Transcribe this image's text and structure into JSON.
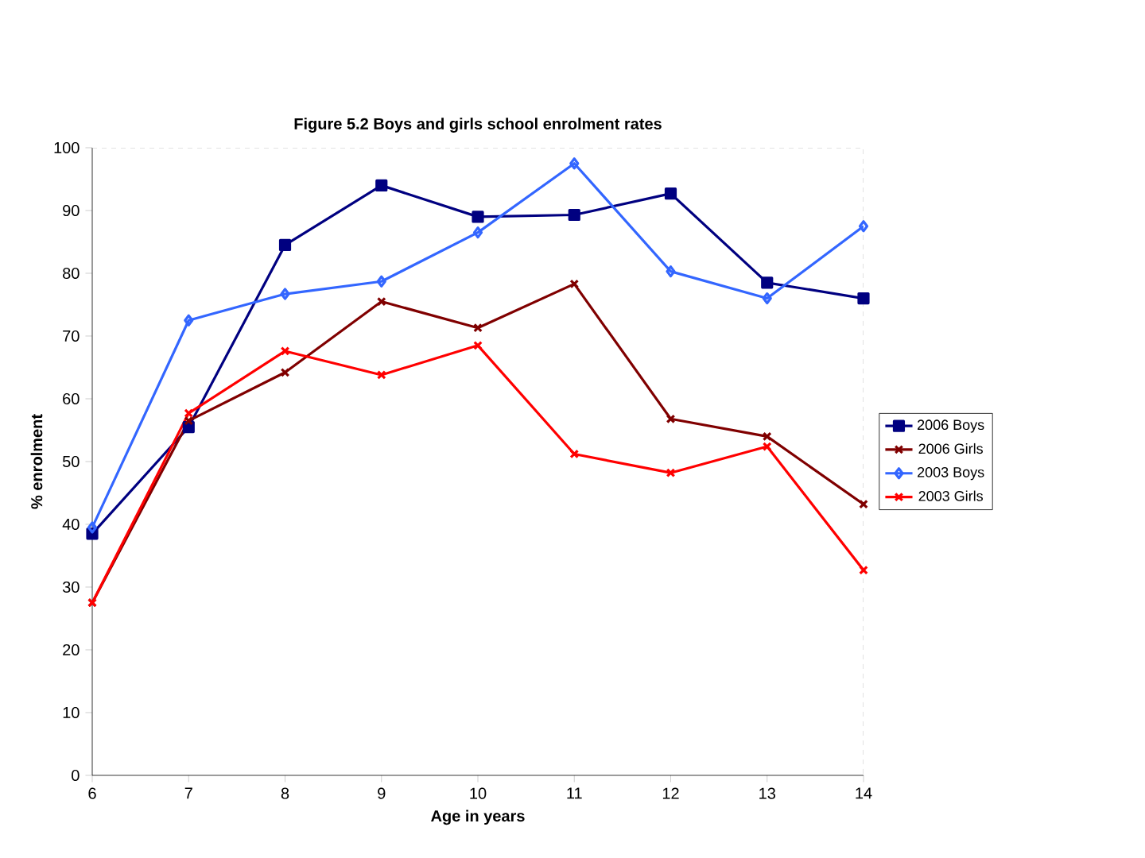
{
  "chart_data": {
    "type": "line",
    "title": "Figure 5.2 Boys and girls school enrolment rates",
    "xlabel": "Age in years",
    "ylabel": "% enrolment",
    "x": [
      6,
      7,
      8,
      9,
      10,
      11,
      12,
      13,
      14
    ],
    "series": [
      {
        "name": "2006 Boys",
        "color": "#000080",
        "marker": "square",
        "values": [
          38.5,
          55.5,
          84.5,
          94,
          89,
          89.3,
          92.7,
          78.5,
          76
        ]
      },
      {
        "name": "2006 Girls",
        "color": "#800000",
        "marker": "cross",
        "values": [
          27.5,
          56.5,
          64.2,
          75.5,
          71.3,
          78.3,
          56.8,
          54,
          43.2
        ]
      },
      {
        "name": "2003 Boys",
        "color": "#3366ff",
        "marker": "diamond",
        "values": [
          39.5,
          72.5,
          76.7,
          78.7,
          86.5,
          97.5,
          80.3,
          76,
          87.5
        ]
      },
      {
        "name": "2003 Girls",
        "color": "#ff0000",
        "marker": "cross",
        "values": [
          27.5,
          57.7,
          67.6,
          63.8,
          68.5,
          51.2,
          48.2,
          52.4,
          32.7
        ]
      }
    ],
    "xlim": [
      6,
      14
    ],
    "xticks": [
      6,
      7,
      8,
      9,
      10,
      11,
      12,
      13,
      14
    ],
    "ylim": [
      0,
      100
    ],
    "yticks": [
      0,
      10,
      20,
      30,
      40,
      50,
      60,
      70,
      80,
      90,
      100
    ],
    "grid": false,
    "legend": "right"
  }
}
